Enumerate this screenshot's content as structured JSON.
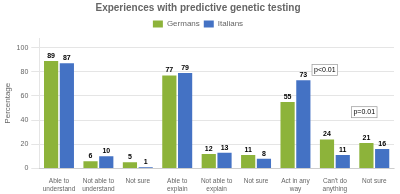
{
  "chart_data": {
    "type": "bar",
    "title": "Experiences with predictive genetic testing",
    "ylabel": "Percentage",
    "categories": [
      "Able to\nunderstand",
      "Not able to\nunderstand",
      "Not sure",
      "Able to\nexplain",
      "Not able to\nexplain",
      "Not sure",
      "Act in any\nway",
      "Can't do\nanything",
      "Not sure"
    ],
    "series": [
      {
        "name": "Germans",
        "color": "#8DB33A",
        "values": [
          89,
          6,
          5,
          77,
          12,
          11,
          55,
          24,
          21
        ]
      },
      {
        "name": "Italians",
        "color": "#4472C4",
        "values": [
          87,
          10,
          1,
          79,
          13,
          8,
          73,
          11,
          16
        ]
      }
    ],
    "ylim": [
      0,
      108
    ],
    "yticks": [
      0,
      20,
      40,
      60,
      80,
      100
    ],
    "grid": true,
    "legend": "top",
    "data_labels": true,
    "annotations": [
      {
        "text": "p<0.01",
        "category": "Act in any\nway",
        "y": 77
      },
      {
        "text": "p=0.01",
        "category": "Can't do\nanything",
        "y": 42
      }
    ]
  }
}
